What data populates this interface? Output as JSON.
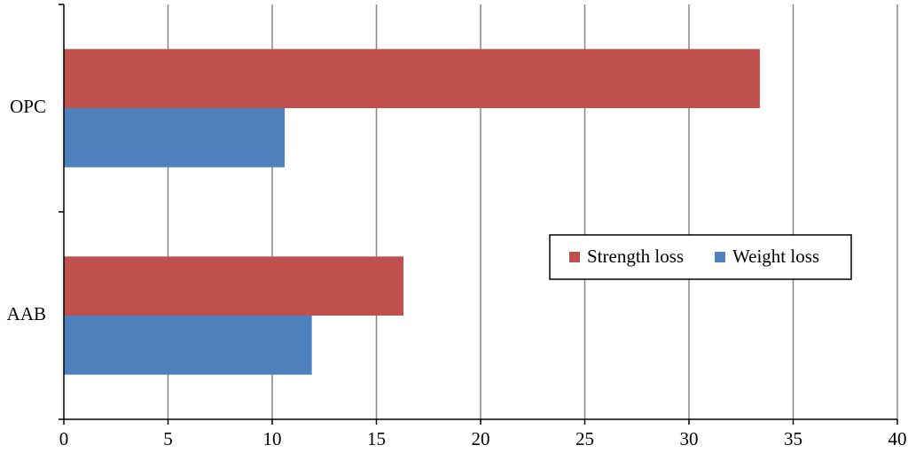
{
  "chart_data": {
    "type": "hbar",
    "categories": [
      "OPC",
      "AAB"
    ],
    "series": [
      {
        "name": "Strength loss",
        "color": "#c0504d",
        "values": [
          33.4,
          16.3
        ]
      },
      {
        "name": "Weight loss",
        "color": "#4f81bd",
        "values": [
          10.6,
          11.9
        ]
      }
    ],
    "xlim": [
      0,
      40
    ],
    "xticks": [
      0,
      5,
      10,
      15,
      20,
      25,
      30,
      35,
      40
    ],
    "grid": true
  }
}
